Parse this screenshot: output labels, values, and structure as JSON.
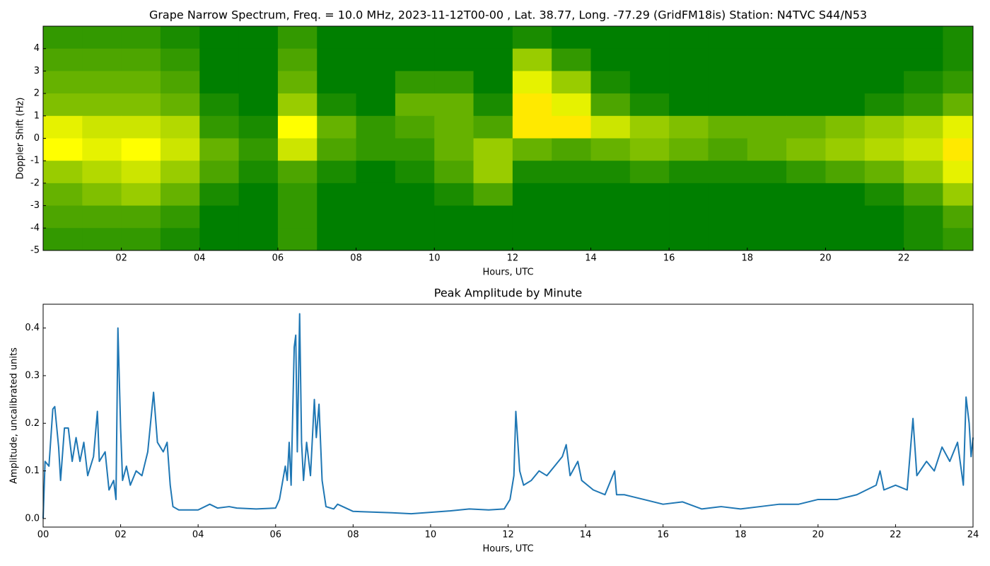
{
  "chart_data": [
    {
      "type": "heatmap",
      "title": "Grape Narrow Spectrum, Freq. = 10.0 MHz, 2023-11-12T00-00 , Lat.  38.77, Long. -77.29 (GridFM18is) Station: N4TVC S44/N53",
      "xlabel": "Hours, UTC",
      "ylabel": "Doppler Shift (Hz)",
      "x": [
        0,
        1,
        2,
        3,
        4,
        5,
        6,
        7,
        8,
        9,
        10,
        11,
        12,
        13,
        14,
        15,
        16,
        17,
        18,
        19,
        20,
        21,
        22,
        23
      ],
      "y": [
        4.5,
        3.5,
        2.5,
        1.5,
        0.5,
        -0.5,
        -1.5,
        -2.5,
        -3.5,
        -4.5
      ],
      "z": [
        [
          0.1,
          0.1,
          0.1,
          0.05,
          0,
          0,
          0.1,
          0,
          0,
          0,
          0,
          0,
          0.05,
          0,
          0,
          0,
          0,
          0,
          0,
          0,
          0,
          0,
          0,
          0.05
        ],
        [
          0.15,
          0.15,
          0.15,
          0.1,
          0,
          0,
          0.15,
          0,
          0,
          0,
          0,
          0,
          0.3,
          0.1,
          0,
          0,
          0,
          0,
          0,
          0,
          0,
          0,
          0,
          0.05
        ],
        [
          0.2,
          0.2,
          0.2,
          0.15,
          0,
          0,
          0.2,
          0,
          0,
          0.1,
          0.1,
          0,
          0.45,
          0.3,
          0.05,
          0,
          0,
          0,
          0,
          0,
          0,
          0,
          0.05,
          0.1
        ],
        [
          0.25,
          0.25,
          0.25,
          0.2,
          0.05,
          0,
          0.3,
          0.05,
          0,
          0.2,
          0.2,
          0.05,
          0.55,
          0.45,
          0.15,
          0.05,
          0,
          0,
          0,
          0,
          0,
          0.05,
          0.1,
          0.2
        ],
        [
          0.45,
          0.4,
          0.4,
          0.35,
          0.1,
          0.05,
          0.5,
          0.2,
          0.1,
          0.15,
          0.2,
          0.15,
          0.55,
          0.55,
          0.4,
          0.3,
          0.25,
          0.2,
          0.2,
          0.2,
          0.25,
          0.3,
          0.35,
          0.45
        ],
        [
          0.5,
          0.45,
          0.5,
          0.4,
          0.2,
          0.1,
          0.4,
          0.15,
          0.1,
          0.1,
          0.2,
          0.3,
          0.2,
          0.15,
          0.2,
          0.25,
          0.2,
          0.15,
          0.2,
          0.25,
          0.3,
          0.35,
          0.4,
          0.55
        ],
        [
          0.3,
          0.35,
          0.4,
          0.3,
          0.15,
          0.05,
          0.15,
          0.05,
          0,
          0.05,
          0.15,
          0.3,
          0.05,
          0.05,
          0.05,
          0.1,
          0.05,
          0.05,
          0.05,
          0.1,
          0.15,
          0.2,
          0.3,
          0.45
        ],
        [
          0.2,
          0.25,
          0.3,
          0.2,
          0.05,
          0,
          0.1,
          0,
          0,
          0,
          0.05,
          0.15,
          0,
          0,
          0,
          0,
          0,
          0,
          0,
          0,
          0,
          0.05,
          0.15,
          0.3
        ],
        [
          0.15,
          0.15,
          0.15,
          0.1,
          0,
          0,
          0.1,
          0,
          0,
          0,
          0,
          0,
          0,
          0,
          0,
          0,
          0,
          0,
          0,
          0,
          0,
          0,
          0.05,
          0.15
        ],
        [
          0.1,
          0.1,
          0.1,
          0.05,
          0,
          0,
          0.1,
          0,
          0,
          0,
          0,
          0,
          0,
          0,
          0,
          0,
          0,
          0,
          0,
          0,
          0,
          0,
          0.05,
          0.1
        ]
      ],
      "colors": [
        "#007f00",
        "#ffff00",
        "#ff2000"
      ],
      "xlim": [
        0,
        23.77
      ],
      "ylim": [
        -5,
        5
      ],
      "xticks": [
        {
          "value": 2,
          "label": "02"
        },
        {
          "value": 4,
          "label": "04"
        },
        {
          "value": 6,
          "label": "06"
        },
        {
          "value": 8,
          "label": "08"
        },
        {
          "value": 10,
          "label": "10"
        },
        {
          "value": 12,
          "label": "12"
        },
        {
          "value": 14,
          "label": "14"
        },
        {
          "value": 16,
          "label": "16"
        },
        {
          "value": 18,
          "label": "18"
        },
        {
          "value": 20,
          "label": "20"
        },
        {
          "value": 22,
          "label": "22"
        }
      ],
      "yticks": [
        -5,
        -4,
        -3,
        -2,
        -1,
        0,
        1,
        2,
        3,
        4
      ]
    },
    {
      "type": "line",
      "title": "Peak Amplitude by Minute",
      "xlabel": "Hours, UTC",
      "ylabel": "Amplitude, uncalibrated units",
      "x": [
        0,
        0.05,
        0.15,
        0.25,
        0.3,
        0.4,
        0.45,
        0.55,
        0.65,
        0.75,
        0.85,
        0.95,
        1.05,
        1.15,
        1.3,
        1.4,
        1.45,
        1.6,
        1.7,
        1.82,
        1.88,
        1.93,
        2.0,
        2.05,
        2.15,
        2.25,
        2.4,
        2.55,
        2.7,
        2.85,
        2.95,
        3.1,
        3.2,
        3.28,
        3.35,
        3.5,
        4.0,
        4.3,
        4.5,
        4.8,
        5.0,
        5.5,
        6.0,
        6.1,
        6.25,
        6.3,
        6.35,
        6.4,
        6.48,
        6.52,
        6.56,
        6.62,
        6.67,
        6.72,
        6.8,
        6.9,
        7.0,
        7.05,
        7.12,
        7.2,
        7.3,
        7.5,
        7.6,
        8.0,
        9.0,
        9.5,
        10.0,
        10.5,
        11.0,
        11.5,
        11.9,
        12.05,
        12.15,
        12.2,
        12.3,
        12.4,
        12.6,
        12.8,
        13.0,
        13.2,
        13.4,
        13.5,
        13.6,
        13.8,
        13.9,
        14.2,
        14.5,
        14.75,
        14.8,
        15.0,
        15.5,
        16.0,
        16.5,
        17.0,
        17.5,
        18.0,
        18.5,
        19.0,
        19.5,
        20.0,
        20.5,
        21.0,
        21.5,
        21.6,
        21.7,
        22.0,
        22.3,
        22.45,
        22.55,
        22.8,
        23.0,
        23.2,
        23.4,
        23.6,
        23.75,
        23.82,
        23.9,
        23.95,
        24.0
      ],
      "series": [
        {
          "name": "amplitude",
          "color": "#1f77b4",
          "values": [
            0.0,
            0.12,
            0.11,
            0.23,
            0.235,
            0.15,
            0.08,
            0.19,
            0.19,
            0.12,
            0.17,
            0.12,
            0.16,
            0.09,
            0.13,
            0.225,
            0.12,
            0.14,
            0.06,
            0.08,
            0.04,
            0.4,
            0.19,
            0.08,
            0.11,
            0.07,
            0.1,
            0.09,
            0.14,
            0.265,
            0.16,
            0.14,
            0.16,
            0.07,
            0.025,
            0.018,
            0.018,
            0.03,
            0.022,
            0.025,
            0.022,
            0.02,
            0.022,
            0.04,
            0.11,
            0.08,
            0.16,
            0.07,
            0.36,
            0.385,
            0.14,
            0.43,
            0.16,
            0.08,
            0.16,
            0.09,
            0.25,
            0.17,
            0.24,
            0.08,
            0.025,
            0.02,
            0.03,
            0.015,
            0.012,
            0.01,
            0.013,
            0.016,
            0.02,
            0.018,
            0.02,
            0.04,
            0.09,
            0.225,
            0.1,
            0.07,
            0.08,
            0.1,
            0.09,
            0.11,
            0.13,
            0.155,
            0.09,
            0.12,
            0.08,
            0.06,
            0.05,
            0.1,
            0.05,
            0.05,
            0.04,
            0.03,
            0.035,
            0.02,
            0.025,
            0.02,
            0.025,
            0.03,
            0.03,
            0.04,
            0.04,
            0.05,
            0.07,
            0.1,
            0.06,
            0.07,
            0.06,
            0.21,
            0.09,
            0.12,
            0.1,
            0.15,
            0.12,
            0.16,
            0.07,
            0.255,
            0.2,
            0.13,
            0.17
          ]
        }
      ],
      "xlim": [
        0,
        24
      ],
      "ylim": [
        -0.018,
        0.45
      ],
      "xticks": [
        {
          "value": 0,
          "label": "00"
        },
        {
          "value": 2,
          "label": "02"
        },
        {
          "value": 4,
          "label": "04"
        },
        {
          "value": 6,
          "label": "06"
        },
        {
          "value": 8,
          "label": "08"
        },
        {
          "value": 10,
          "label": "10"
        },
        {
          "value": 12,
          "label": "12"
        },
        {
          "value": 14,
          "label": "14"
        },
        {
          "value": 16,
          "label": "16"
        },
        {
          "value": 18,
          "label": "18"
        },
        {
          "value": 20,
          "label": "20"
        },
        {
          "value": 22,
          "label": "22"
        },
        {
          "value": 24,
          "label": "24"
        }
      ],
      "yticks": [
        {
          "value": 0,
          "label": "0.0"
        },
        0.1,
        0.2,
        0.3,
        0.4
      ]
    }
  ]
}
